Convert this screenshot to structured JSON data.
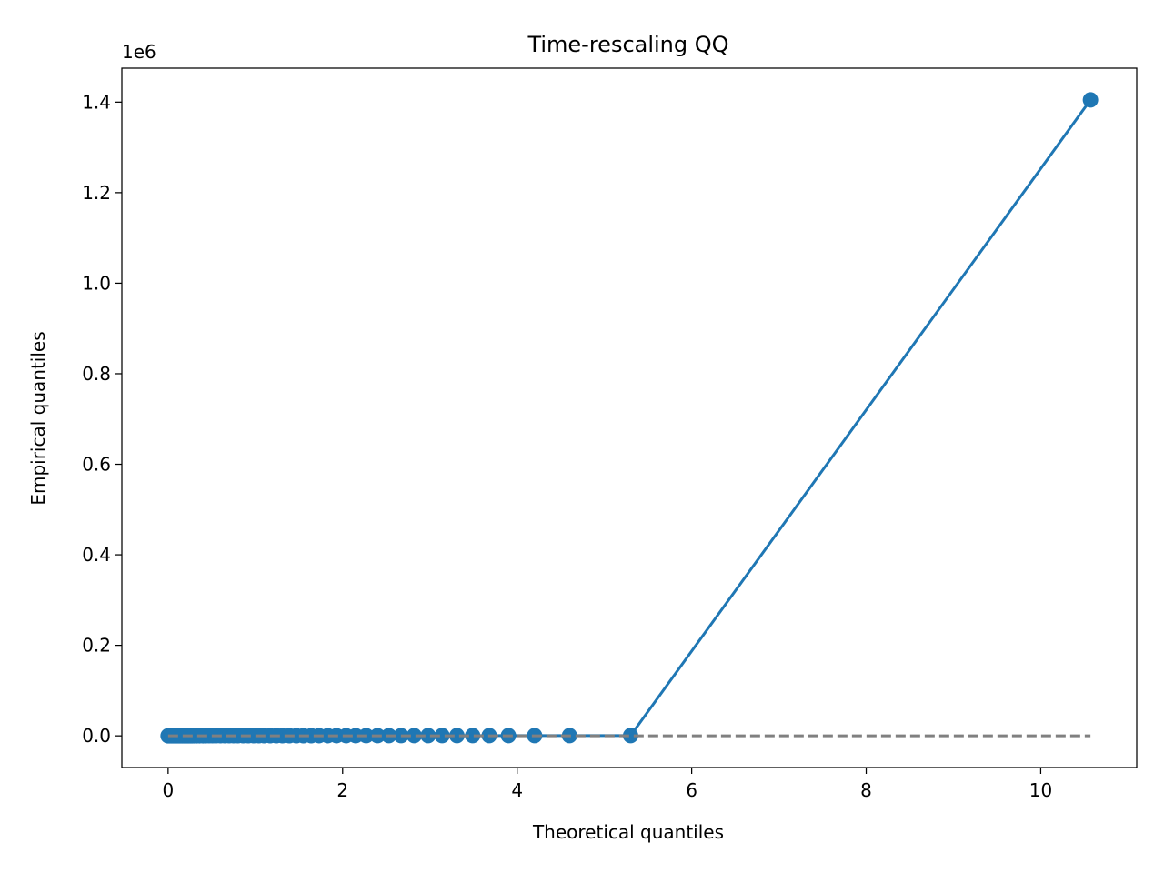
{
  "chart_data": {
    "type": "scatter",
    "title": "Time-rescaling QQ",
    "xlabel": "Theoretical quantiles",
    "ylabel": "Empirical quantiles",
    "y_offset_label": "1e6",
    "xlim": [
      -0.53,
      11.1
    ],
    "ylim": [
      -70000,
      1475000
    ],
    "x_ticks": [
      0,
      2,
      4,
      6,
      8,
      10
    ],
    "y_ticks": [
      0,
      0.2,
      0.4,
      0.6,
      0.8,
      1.0,
      1.2,
      1.4
    ],
    "y_tick_multiplier": 1000000,
    "grid": false,
    "legend": "none",
    "colors": {
      "series": "#1f77b4",
      "reference": "#808080"
    },
    "series": [
      {
        "x": [
          0.0,
          0.02,
          0.04,
          0.06,
          0.08,
          0.1,
          0.12,
          0.14,
          0.16,
          0.18,
          0.2,
          0.22,
          0.24,
          0.26,
          0.28,
          0.3,
          0.33,
          0.36,
          0.4,
          0.43,
          0.47,
          0.51,
          0.55,
          0.6,
          0.65,
          0.7,
          0.75,
          0.8,
          0.86,
          0.92,
          0.98,
          1.04,
          1.1,
          1.17,
          1.24,
          1.31,
          1.39,
          1.47,
          1.55,
          1.64,
          1.73,
          1.83,
          1.93,
          2.04,
          2.15,
          2.27,
          2.4,
          2.53,
          2.67,
          2.82,
          2.98,
          3.14,
          3.31,
          3.49,
          3.68,
          3.9,
          4.2,
          4.6,
          5.3,
          10.57
        ],
        "y": [
          0,
          10,
          20,
          30,
          40,
          50,
          60,
          70,
          80,
          90,
          100,
          110,
          120,
          130,
          140,
          150,
          160,
          170,
          180,
          190,
          200,
          210,
          220,
          230,
          240,
          250,
          260,
          270,
          280,
          290,
          300,
          310,
          320,
          330,
          340,
          350,
          360,
          370,
          380,
          390,
          400,
          410,
          420,
          430,
          440,
          450,
          460,
          470,
          480,
          490,
          500,
          510,
          520,
          530,
          540,
          550,
          560,
          570,
          580,
          1405000
        ]
      },
      {
        "x": [
          0,
          10.57
        ],
        "y": [
          0,
          10.57
        ]
      }
    ]
  }
}
